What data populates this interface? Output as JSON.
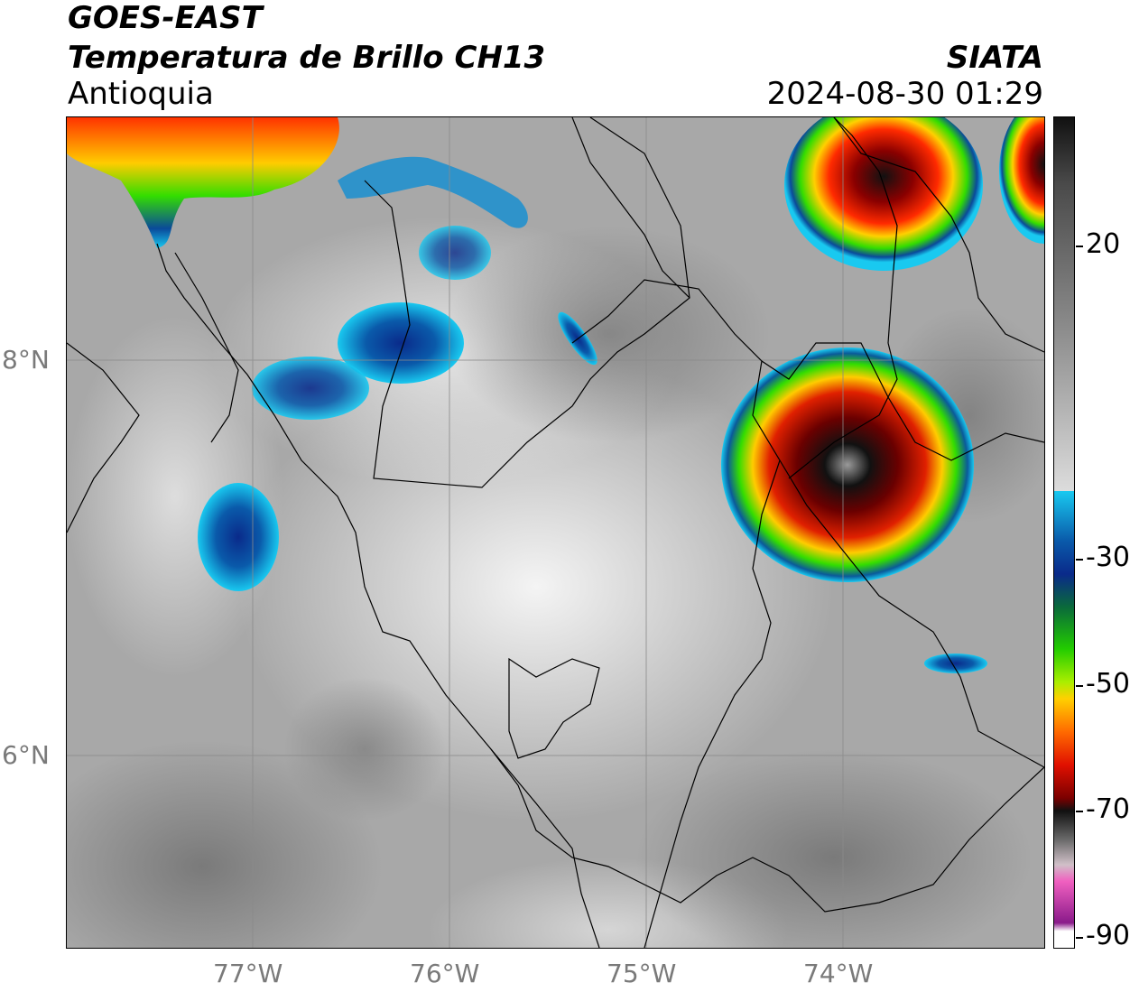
{
  "header": {
    "satellite": "GOES-EAST",
    "product": "Temperatura de Brillo CH13",
    "region": "Antioquia",
    "agency": "SIATA",
    "timestamp": "2024-08-30 01:29"
  },
  "axes": {
    "lat_labels": [
      "8°N",
      "6°N"
    ],
    "lon_labels": [
      "77°W",
      "76°W",
      "75°W",
      "74°W"
    ]
  },
  "colorbar": {
    "tick_labels": [
      "20",
      "-30",
      "-50",
      "-70",
      "-90"
    ]
  },
  "colors": {
    "frame": "#000000",
    "grid": "#888888",
    "axis_text": "#7a7a7a"
  }
}
